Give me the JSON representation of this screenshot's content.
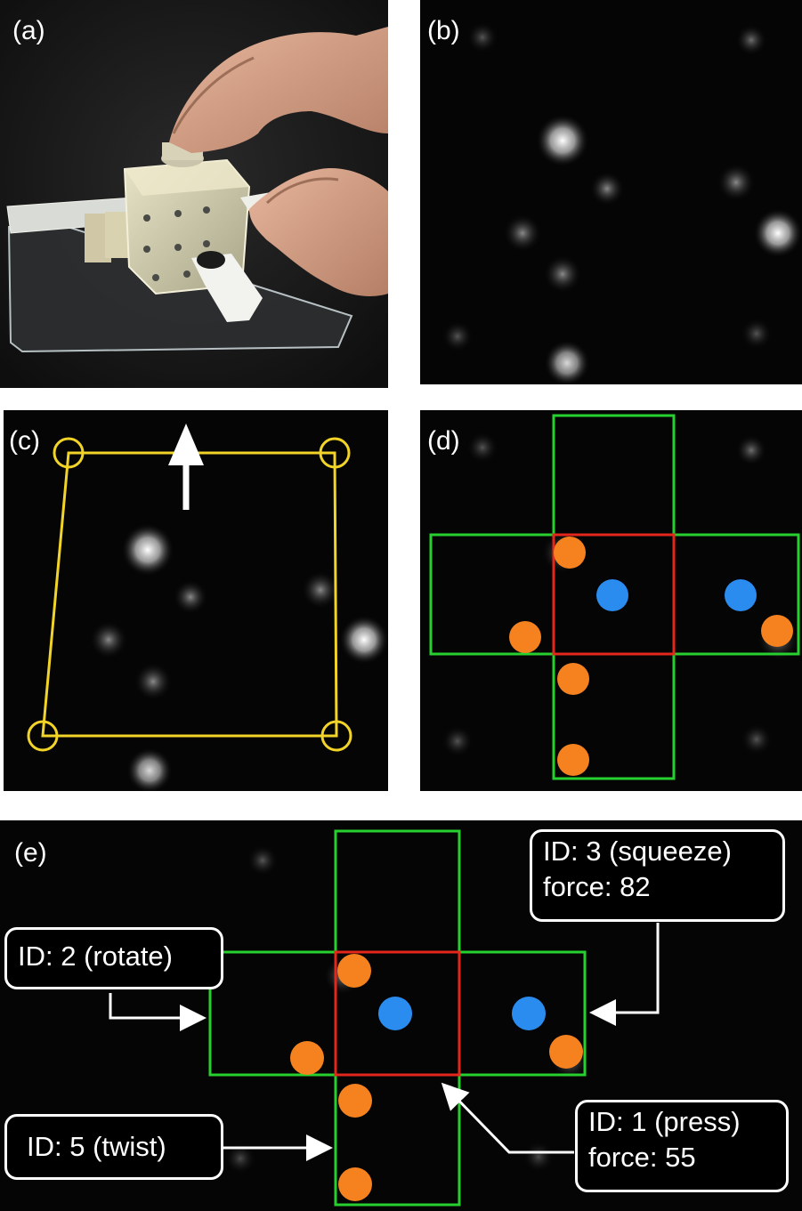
{
  "panels": {
    "a": {
      "label": "(a)"
    },
    "b": {
      "label": "(b)"
    },
    "c": {
      "label": "(c)"
    },
    "d": {
      "label": "(d)"
    },
    "e": {
      "label": "(e)"
    }
  },
  "colors": {
    "yellow_marker": "#f2d429",
    "green_box": "#26d02e",
    "red_box": "#e4261c",
    "orange_dot": "#f5821f",
    "blue_dot": "#2b8cf0",
    "arrow": "#ffffff"
  },
  "callouts": {
    "squeeze": {
      "line1": "ID: 3 (squeeze)",
      "line2": "force: 82"
    },
    "rotate": {
      "line1": "ID: 2 (rotate)"
    },
    "twist": {
      "line1": "ID: 5 (twist)"
    },
    "press": {
      "line1": "ID: 1 (press)",
      "line2": "force:  55"
    }
  }
}
